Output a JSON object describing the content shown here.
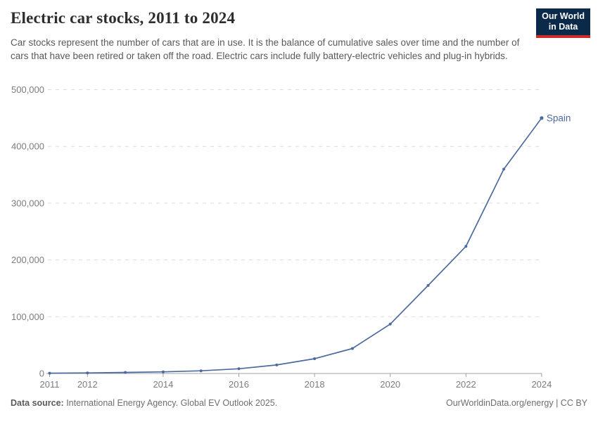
{
  "header": {
    "title": "Electric car stocks, 2011 to 2024",
    "subtitle": "Car stocks represent the number of cars that are in use. It is the balance of cumulative sales over time and the number of cars that have been retired or taken off the road. Electric cars include fully battery-electric vehicles and plug-in hybrids.",
    "logo": {
      "line1": "Our World",
      "line2": "in Data"
    }
  },
  "chart_data": {
    "type": "line",
    "title": "Electric car stocks, 2011 to 2024",
    "xlabel": "",
    "ylabel": "",
    "x": [
      2011,
      2012,
      2013,
      2014,
      2015,
      2016,
      2017,
      2018,
      2019,
      2020,
      2021,
      2022,
      2023,
      2024
    ],
    "series": [
      {
        "name": "Spain",
        "values": [
          500,
          1000,
          1800,
          2900,
          4700,
          8300,
          15000,
          26000,
          44000,
          87000,
          155000,
          224000,
          360000,
          450000
        ]
      }
    ],
    "ylim": [
      0,
      500000
    ],
    "yticks": [
      0,
      100000,
      200000,
      300000,
      400000,
      500000
    ],
    "xticks": [
      2011,
      2012,
      2014,
      2016,
      2018,
      2020,
      2022,
      2024
    ],
    "grid": "horizontal-dashed",
    "legend_position": "end-of-line-label"
  },
  "colors": {
    "line": "#4c6a9d",
    "end_label": "#4c6a9d",
    "grid": "#dcdcdc",
    "axis": "#a0a0a0",
    "tick_label": "#7d7d7d",
    "logo_bg": "#0b2a4a",
    "logo_red": "#cb2d2d"
  },
  "footer": {
    "source_label": "Data source:",
    "source_text": " International Energy Agency. Global EV Outlook 2025.",
    "right_text": "OurWorldinData.org/energy | CC BY"
  }
}
